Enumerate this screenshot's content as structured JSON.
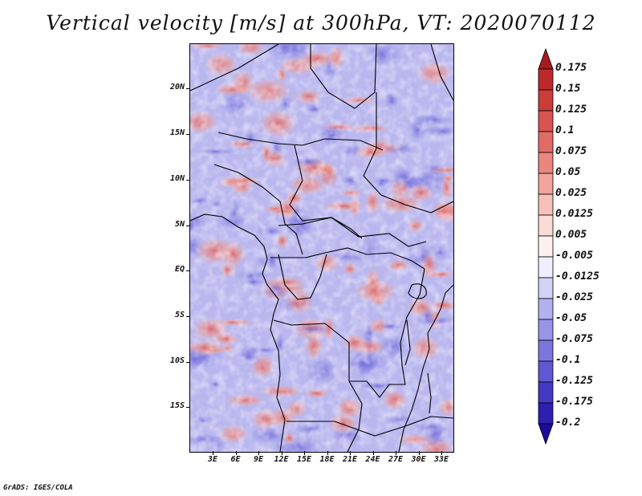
{
  "title": "Vertical velocity [m/s] at 300hPa, VT: 2020070112",
  "footer": "GrADS: IGES/COLA",
  "map": {
    "variable": "Vertical velocity",
    "units": "m/s",
    "level": "300hPa",
    "valid_time": "2020070112",
    "lat_labels": [
      "20N",
      "15N",
      "10N",
      "5N",
      "EQ",
      "5S",
      "10S",
      "15S"
    ],
    "lon_labels": [
      "3E",
      "6E",
      "9E",
      "12E",
      "15E",
      "18E",
      "21E",
      "24E",
      "27E",
      "30E",
      "33E"
    ]
  },
  "colorbar": {
    "labels": [
      "0.175",
      "0.15",
      "0.125",
      "0.1",
      "0.075",
      "0.05",
      "0.025",
      "0.0125",
      "0.005",
      "-0.005",
      "-0.0125",
      "-0.025",
      "-0.05",
      "-0.075",
      "-0.1",
      "-0.125",
      "-0.175",
      "-0.2"
    ],
    "colors": [
      "#a61b22",
      "#be2a2c",
      "#cc3c3a",
      "#d85450",
      "#e16c66",
      "#e9877f",
      "#f0a49c",
      "#f6c1ba",
      "#fadbd6",
      "#fdf1ef",
      "#efeffd",
      "#d4d2f7",
      "#b4b1f0",
      "#9894e8",
      "#7b76de",
      "#5f58d2",
      "#4439c4",
      "#2d1fb0",
      "#1c0b9a"
    ]
  }
}
